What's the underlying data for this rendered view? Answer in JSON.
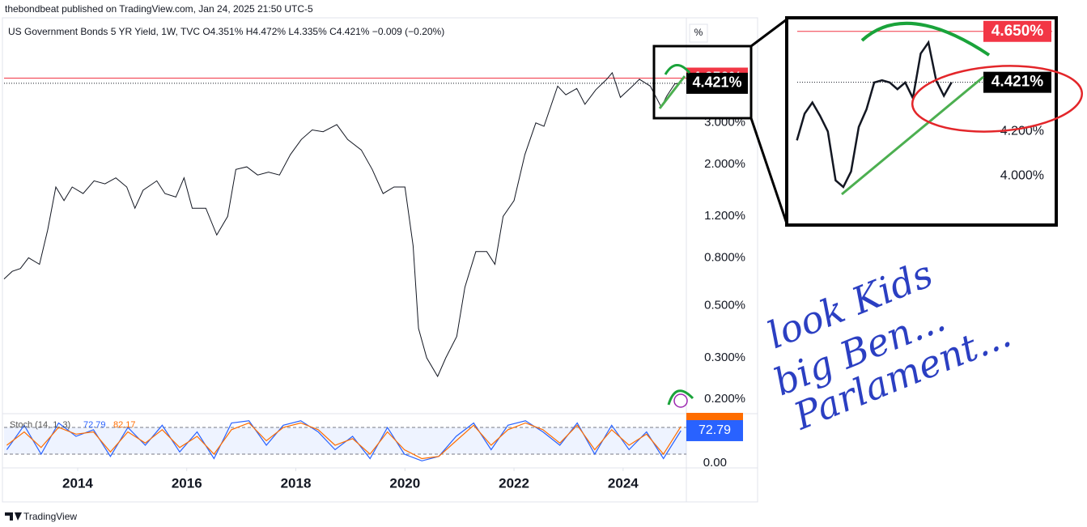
{
  "header": "thebondbeat published on TradingView.com, Jan 24, 2025 21:50 UTC-5",
  "footer": "TradingView",
  "handwriting": [
    "look Kids",
    "big Ben...",
    "Parlament..."
  ],
  "chart_data": [
    {
      "type": "line",
      "title": "US Government Bonds 5 YR Yield, 1W, TVC O4.351% H4.472% L4.335% C4.421% −0.009 (−0.20%)",
      "unit_label": "%",
      "color": "#131722",
      "log_scale": true,
      "x": [
        2012.65,
        2012.8,
        2012.95,
        2013.1,
        2013.3,
        2013.45,
        2013.6,
        2013.75,
        2013.9,
        2014.1,
        2014.3,
        2014.5,
        2014.7,
        2014.9,
        2015.05,
        2015.2,
        2015.45,
        2015.6,
        2015.8,
        2015.95,
        2016.1,
        2016.35,
        2016.55,
        2016.75,
        2016.9,
        2017.1,
        2017.3,
        2017.5,
        2017.7,
        2017.9,
        2018.1,
        2018.3,
        2018.5,
        2018.75,
        2018.95,
        2019.2,
        2019.4,
        2019.6,
        2019.8,
        2020.0,
        2020.15,
        2020.25,
        2020.4,
        2020.6,
        2020.75,
        2020.95,
        2021.1,
        2021.3,
        2021.5,
        2021.65,
        2021.8,
        2022.0,
        2022.2,
        2022.4,
        2022.55,
        2022.8,
        2022.95,
        2023.15,
        2023.3,
        2023.5,
        2023.7,
        2023.8,
        2023.95,
        2024.15,
        2024.3,
        2024.5,
        2024.7,
        2024.8,
        2024.95,
        2025.06
      ],
      "values": [
        0.65,
        0.7,
        0.72,
        0.8,
        0.75,
        1.05,
        1.6,
        1.4,
        1.6,
        1.5,
        1.7,
        1.65,
        1.75,
        1.6,
        1.3,
        1.55,
        1.7,
        1.5,
        1.45,
        1.75,
        1.3,
        1.3,
        1.0,
        1.2,
        1.9,
        1.95,
        1.8,
        1.85,
        1.8,
        2.2,
        2.55,
        2.8,
        2.75,
        2.95,
        2.55,
        2.3,
        1.9,
        1.5,
        1.6,
        1.6,
        0.9,
        0.4,
        0.3,
        0.25,
        0.3,
        0.37,
        0.6,
        0.85,
        0.85,
        0.75,
        1.2,
        1.4,
        2.2,
        3.0,
        2.9,
        4.3,
        3.95,
        4.2,
        3.6,
        4.15,
        4.6,
        4.9,
        3.85,
        4.25,
        4.6,
        4.3,
        3.5,
        3.9,
        4.4,
        4.421
      ],
      "xlim": [
        2012.65,
        2025.16
      ],
      "xticks": [
        2014,
        2016,
        2018,
        2020,
        2022,
        2024
      ],
      "ylim": [
        0.175,
        8.2
      ],
      "yticks": [
        {
          "value": 0.2,
          "label": "0.200%"
        },
        {
          "value": 0.3,
          "label": "0.300%"
        },
        {
          "value": 0.5,
          "label": "0.500%"
        },
        {
          "value": 0.8,
          "label": "0.800%"
        },
        {
          "value": 1.2,
          "label": "1.200%"
        },
        {
          "value": 2,
          "label": "2.000%"
        },
        {
          "value": 3,
          "label": "3.000%"
        }
      ],
      "price_labels": [
        {
          "value": 4.65,
          "label": "4.650%",
          "color": "#f23645",
          "line": "solid"
        },
        {
          "value": 4.421,
          "label": "4.421%",
          "color": "#000000",
          "line": "dotted"
        }
      ]
    },
    {
      "type": "line",
      "title": "Stoch (14, 1, 3)",
      "x": [
        2012.7,
        2013.02,
        2013.33,
        2013.65,
        2013.97,
        2014.29,
        2014.6,
        2014.92,
        2015.24,
        2015.55,
        2015.87,
        2016.19,
        2016.5,
        2016.82,
        2017.14,
        2017.46,
        2017.77,
        2018.09,
        2018.41,
        2018.72,
        2019.04,
        2019.36,
        2019.68,
        2019.99,
        2020.31,
        2020.62,
        2020.94,
        2021.26,
        2021.58,
        2021.89,
        2022.21,
        2022.53,
        2022.84,
        2023.16,
        2023.48,
        2023.79,
        2024.11,
        2024.43,
        2024.74,
        2025.06
      ],
      "series": [
        {
          "color": "#2962ff",
          "last_label": "72.79",
          "values": [
            30,
            85,
            20,
            90,
            60,
            75,
            15,
            80,
            40,
            85,
            25,
            70,
            10,
            90,
            95,
            40,
            85,
            95,
            70,
            30,
            60,
            10,
            80,
            20,
            5,
            15,
            60,
            90,
            30,
            85,
            95,
            70,
            40,
            90,
            20,
            85,
            30,
            70,
            10,
            72.79
          ]
        },
        {
          "color": "#ff6d00",
          "last_label": "82.17",
          "values": [
            40,
            70,
            35,
            80,
            65,
            70,
            25,
            70,
            45,
            75,
            35,
            60,
            20,
            75,
            90,
            50,
            80,
            90,
            75,
            40,
            55,
            20,
            70,
            30,
            10,
            15,
            50,
            85,
            40,
            75,
            90,
            75,
            45,
            85,
            30,
            75,
            40,
            65,
            20,
            82.17
          ]
        }
      ],
      "xlim": [
        2012.65,
        2025.16
      ],
      "ylim": [
        0,
        100
      ],
      "levels": [
        20,
        80
      ],
      "yticks": [
        {
          "value": 0,
          "label": "0.00"
        }
      ]
    },
    {
      "type": "line",
      "color": "#131722",
      "x": [
        2024.64,
        2024.66,
        2024.68,
        2024.7,
        2024.72,
        2024.74,
        2024.76,
        2024.78,
        2024.8,
        2024.82,
        2024.84,
        2024.86,
        2024.88,
        2024.9,
        2024.92,
        2024.94,
        2024.96,
        2024.98,
        2025.0,
        2025.02,
        2025.04
      ],
      "values": [
        4.16,
        4.28,
        4.33,
        4.27,
        4.2,
        3.98,
        3.95,
        4.02,
        4.22,
        4.3,
        4.42,
        4.43,
        4.42,
        4.39,
        4.42,
        4.35,
        4.55,
        4.6,
        4.43,
        4.36,
        4.421
      ],
      "xlim": [
        2024.62,
        2025.3
      ],
      "ylim": [
        3.79,
        4.7
      ],
      "yticks": [
        {
          "value": 4,
          "label": "4.000%"
        },
        {
          "value": 4.2,
          "label": "4.200%"
        }
      ],
      "price_labels": [
        {
          "value": 4.65,
          "label": "4.650%",
          "color": "#f23645",
          "line": "solid"
        },
        {
          "value": 4.421,
          "label": "4.421%",
          "color": "#000000",
          "line": "dotted"
        }
      ]
    }
  ]
}
